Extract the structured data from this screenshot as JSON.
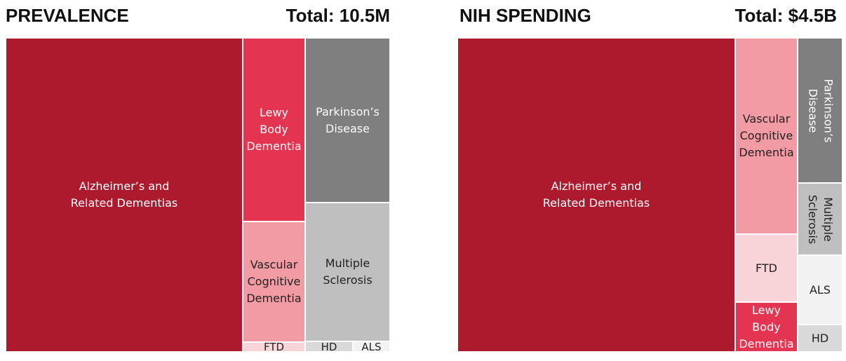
{
  "chart_data": [
    {
      "type": "treemap",
      "title": "PREVALENCE",
      "total_label": "Total: 10.5M",
      "tiles": [
        {
          "key": "alz",
          "label": "Alzheimer’s and\nRelated Dementias",
          "color": "#ad1a2e",
          "text_color": "#ffffff"
        },
        {
          "key": "lewy",
          "label": "Lewy\nBody\nDementia",
          "color": "#e33551",
          "text_color": "#ffffff"
        },
        {
          "key": "vasc",
          "label": "Vascular\nCognitive\nDementia",
          "color": "#f29ba5",
          "text_color": "#222222"
        },
        {
          "key": "ftd",
          "label": "FTD",
          "color": "#f8d4d8",
          "text_color": "#222222"
        },
        {
          "key": "pd",
          "label": "Parkinson’s\nDisease",
          "color": "#7f7f7f",
          "text_color": "#ffffff"
        },
        {
          "key": "ms",
          "label": "Multiple\nSclerosis",
          "color": "#bfbfbf",
          "text_color": "#222222"
        },
        {
          "key": "hd",
          "label": "HD",
          "color": "#d9d9d9",
          "text_color": "#222222"
        },
        {
          "key": "als",
          "label": "ALS",
          "color": "#f2f2f2",
          "text_color": "#222222"
        }
      ]
    },
    {
      "type": "treemap",
      "title": "NIH SPENDING",
      "total_label": "Total: $4.5B",
      "tiles": [
        {
          "key": "alz",
          "label": "Alzheimer’s and\nRelated Dementias",
          "color": "#ad1a2e",
          "text_color": "#ffffff"
        },
        {
          "key": "vasc",
          "label": "Vascular\nCognitive\nDementia",
          "color": "#f29ba5",
          "text_color": "#222222"
        },
        {
          "key": "ftd",
          "label": "FTD",
          "color": "#f8d4d8",
          "text_color": "#222222"
        },
        {
          "key": "lewy",
          "label": "Lewy\nBody\nDementia",
          "color": "#e33551",
          "text_color": "#ffffff"
        },
        {
          "key": "pd",
          "label": "Parkinson’s\nDisease",
          "color": "#7f7f7f",
          "text_color": "#ffffff"
        },
        {
          "key": "ms",
          "label": "Multiple\nSclerosis",
          "color": "#bfbfbf",
          "text_color": "#222222"
        },
        {
          "key": "als",
          "label": "ALS",
          "color": "#f2f2f2",
          "text_color": "#222222"
        },
        {
          "key": "hd",
          "label": "HD",
          "color": "#d9d9d9",
          "text_color": "#222222"
        }
      ]
    }
  ]
}
